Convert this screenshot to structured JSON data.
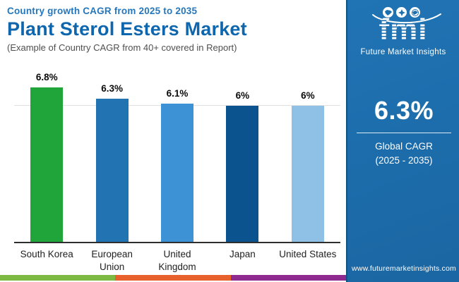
{
  "header": {
    "kicker": "Country growth CAGR from 2025 to 2035",
    "title": "Plant Sterol Esters Market",
    "subtitle": "(Example of Country CAGR from 40+ covered in Report)"
  },
  "chart_data": {
    "type": "bar",
    "title": "Plant Sterol Esters Market — Country growth CAGR from 2025 to 2035",
    "categories": [
      "South Korea",
      "European Union",
      "United Kingdom",
      "Japan",
      "United States"
    ],
    "label_lines": [
      [
        "South Korea"
      ],
      [
        "European",
        "Union"
      ],
      [
        "United",
        "Kingdom"
      ],
      [
        "Japan"
      ],
      [
        "United States"
      ]
    ],
    "values": [
      6.8,
      6.3,
      6.1,
      6.0,
      6.0
    ],
    "value_labels": [
      "6.8%",
      "6.3%",
      "6.1%",
      "6%",
      "6%"
    ],
    "bar_colors": [
      "#1FA539",
      "#2173B2",
      "#3C92D4",
      "#0B538E",
      "#8FC0E5"
    ],
    "ylim": [
      0,
      7.75
    ],
    "gridline_value": 6.0,
    "grid": "single horizontal line at 6%",
    "legend": "none",
    "xlabel": "",
    "ylabel": ""
  },
  "sidebar": {
    "logo_text": "fmi",
    "logo_caption": "Future Market Insights",
    "stat_value": "6.3%",
    "stat_label_line1": "Global CAGR",
    "stat_label_line2": "(2025 - 2035)",
    "website": "www.futuremarketinsights.com",
    "bg_color": "#1D6EAD"
  },
  "footer_strip_colors": {
    "green": "#7CBA43",
    "orange": "#E8602C",
    "purple": "#8F2B8F"
  }
}
